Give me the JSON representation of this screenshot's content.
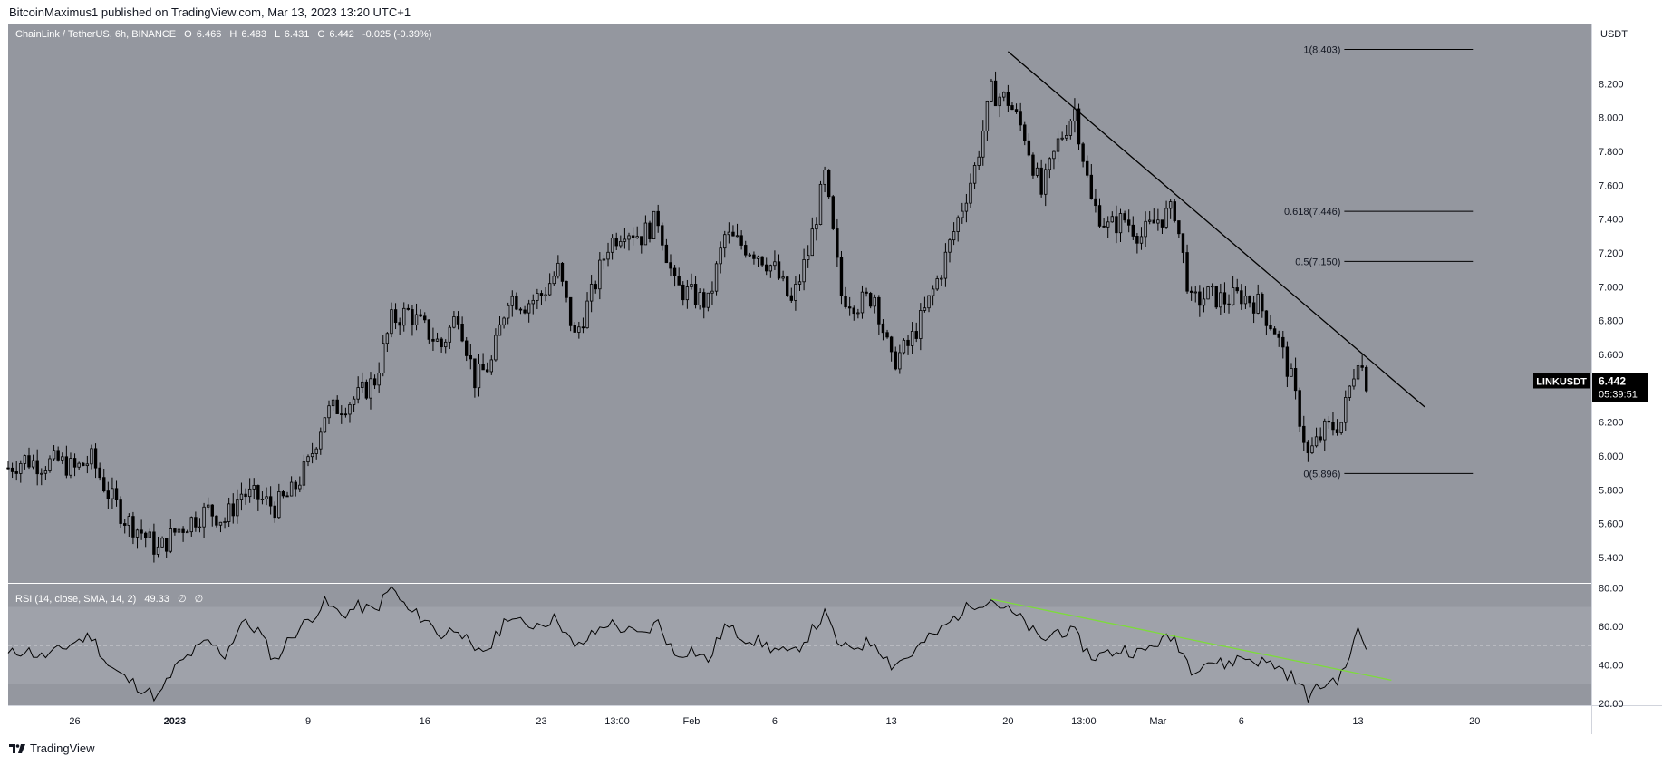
{
  "header": {
    "publish_line": "BitcoinMaximus1 published on TradingView.com, Mar 13, 2023 13:20 UTC+1"
  },
  "footer": {
    "brand": "TradingView"
  },
  "colors": {
    "main_bg": "#94979f",
    "rsi_bg": "#94979f",
    "rsi_band": "#9fa2aa",
    "candle": "#000000",
    "trendline": "#000000",
    "rsi_trendline": "#7ddc3a",
    "price_label_bg": "#000000"
  },
  "chart_data": [
    {
      "type": "candlestick",
      "title": "ChainLink / TetherUS, 6h, BINANCE",
      "ohlc": {
        "o_label": "O",
        "o": "6.466",
        "h_label": "H",
        "h": "6.483",
        "l_label": "L",
        "l": "6.431",
        "c_label": "C",
        "c": "6.442",
        "change": "-0.025 (-0.39%)"
      },
      "unit": "USDT",
      "symbol": "LINKUSDT",
      "last_price": "6.442",
      "countdown": "05:39:51",
      "ylim": [
        5.25,
        8.55
      ],
      "y_ticks": [
        "5.400",
        "5.600",
        "5.800",
        "6.000",
        "6.200",
        "6.400",
        "6.600",
        "6.800",
        "7.000",
        "7.200",
        "7.400",
        "7.600",
        "7.800",
        "8.000",
        "8.200"
      ],
      "x_ticks": [
        "26",
        "2023",
        "9",
        "16",
        "23",
        "13:00",
        "Feb",
        "6",
        "13",
        "20",
        "13:00",
        "Mar",
        "6",
        "13",
        "20"
      ],
      "x_tick_dates": [
        "2022-12-26",
        "2023-01-01",
        "2023-01-09",
        "2023-01-16",
        "2023-01-23",
        "2023-01-27T13:00",
        "2023-02-01",
        "2023-02-06",
        "2023-02-13",
        "2023-02-20",
        "2023-02-24T13:00",
        "2023-03-01",
        "2023-03-06",
        "2023-03-13",
        "2023-03-20"
      ],
      "x_range": [
        "2022-12-22T00:00",
        "2023-03-27T00:00"
      ],
      "close_path": [
        {
          "d": "2022-12-22",
          "v": 5.93
        },
        {
          "d": "2022-12-23",
          "v": 5.98
        },
        {
          "d": "2022-12-24",
          "v": 5.95
        },
        {
          "d": "2022-12-25",
          "v": 5.97
        },
        {
          "d": "2022-12-26",
          "v": 5.92
        },
        {
          "d": "2022-12-27",
          "v": 5.98
        },
        {
          "d": "2022-12-28",
          "v": 5.78
        },
        {
          "d": "2022-12-29",
          "v": 5.63
        },
        {
          "d": "2022-12-30",
          "v": 5.55
        },
        {
          "d": "2022-12-31",
          "v": 5.44
        },
        {
          "d": "2023-01-01",
          "v": 5.55
        },
        {
          "d": "2023-01-02",
          "v": 5.62
        },
        {
          "d": "2023-01-03",
          "v": 5.68
        },
        {
          "d": "2023-01-04",
          "v": 5.62
        },
        {
          "d": "2023-01-05",
          "v": 5.78
        },
        {
          "d": "2023-01-06",
          "v": 5.75
        },
        {
          "d": "2023-01-07",
          "v": 5.7
        },
        {
          "d": "2023-01-08",
          "v": 5.78
        },
        {
          "d": "2023-01-09",
          "v": 5.95
        },
        {
          "d": "2023-01-10",
          "v": 6.25
        },
        {
          "d": "2023-01-11",
          "v": 6.3
        },
        {
          "d": "2023-01-12",
          "v": 6.35
        },
        {
          "d": "2023-01-13",
          "v": 6.45
        },
        {
          "d": "2023-01-14",
          "v": 6.8
        },
        {
          "d": "2023-01-15",
          "v": 6.85
        },
        {
          "d": "2023-01-16",
          "v": 6.75
        },
        {
          "d": "2023-01-17",
          "v": 6.65
        },
        {
          "d": "2023-01-18",
          "v": 6.85
        },
        {
          "d": "2023-01-19",
          "v": 6.45
        },
        {
          "d": "2023-01-20",
          "v": 6.55
        },
        {
          "d": "2023-01-21",
          "v": 6.95
        },
        {
          "d": "2023-01-22",
          "v": 6.9
        },
        {
          "d": "2023-01-23",
          "v": 6.95
        },
        {
          "d": "2023-01-24",
          "v": 7.1
        },
        {
          "d": "2023-01-25",
          "v": 6.7
        },
        {
          "d": "2023-01-26",
          "v": 6.95
        },
        {
          "d": "2023-01-27",
          "v": 7.25
        },
        {
          "d": "2023-01-28",
          "v": 7.35
        },
        {
          "d": "2023-01-29",
          "v": 7.3
        },
        {
          "d": "2023-01-30",
          "v": 7.4
        },
        {
          "d": "2023-01-31",
          "v": 7.0
        },
        {
          "d": "2023-02-01",
          "v": 6.95
        },
        {
          "d": "2023-02-02",
          "v": 6.9
        },
        {
          "d": "2023-02-03",
          "v": 7.3
        },
        {
          "d": "2023-02-04",
          "v": 7.25
        },
        {
          "d": "2023-02-05",
          "v": 7.2
        },
        {
          "d": "2023-02-06",
          "v": 7.1
        },
        {
          "d": "2023-02-07",
          "v": 6.9
        },
        {
          "d": "2023-02-08",
          "v": 7.2
        },
        {
          "d": "2023-02-09",
          "v": 7.65
        },
        {
          "d": "2023-02-10",
          "v": 6.95
        },
        {
          "d": "2023-02-11",
          "v": 6.9
        },
        {
          "d": "2023-02-12",
          "v": 6.95
        },
        {
          "d": "2023-02-13",
          "v": 6.55
        },
        {
          "d": "2023-02-14",
          "v": 6.65
        },
        {
          "d": "2023-02-15",
          "v": 6.85
        },
        {
          "d": "2023-02-16",
          "v": 7.1
        },
        {
          "d": "2023-02-17",
          "v": 7.4
        },
        {
          "d": "2023-02-18",
          "v": 7.7
        },
        {
          "d": "2023-02-19",
          "v": 8.15
        },
        {
          "d": "2023-02-20",
          "v": 8.1
        },
        {
          "d": "2023-02-21",
          "v": 7.9
        },
        {
          "d": "2023-02-22",
          "v": 7.55
        },
        {
          "d": "2023-02-23",
          "v": 7.85
        },
        {
          "d": "2023-02-24",
          "v": 8.05
        },
        {
          "d": "2023-02-25",
          "v": 7.5
        },
        {
          "d": "2023-02-26",
          "v": 7.35
        },
        {
          "d": "2023-02-27",
          "v": 7.4
        },
        {
          "d": "2023-02-28",
          "v": 7.3
        },
        {
          "d": "2023-03-01",
          "v": 7.4
        },
        {
          "d": "2023-03-02",
          "v": 7.45
        },
        {
          "d": "2023-03-03",
          "v": 6.9
        },
        {
          "d": "2023-03-04",
          "v": 6.95
        },
        {
          "d": "2023-03-05",
          "v": 6.92
        },
        {
          "d": "2023-03-06",
          "v": 6.95
        },
        {
          "d": "2023-03-07",
          "v": 6.9
        },
        {
          "d": "2023-03-08",
          "v": 6.75
        },
        {
          "d": "2023-03-09",
          "v": 6.45
        },
        {
          "d": "2023-03-10",
          "v": 6.0
        },
        {
          "d": "2023-03-11",
          "v": 6.15
        },
        {
          "d": "2023-03-12",
          "v": 6.2
        },
        {
          "d": "2023-03-13",
          "v": 6.6
        },
        {
          "d": "2023-03-13T12:00",
          "v": 6.44
        }
      ],
      "trendline": {
        "from": {
          "d": "2023-02-20",
          "v": 8.39
        },
        "to": {
          "d": "2023-03-17",
          "v": 6.29
        }
      },
      "fib_levels": [
        {
          "label": "1(8.403)",
          "value": 8.403
        },
        {
          "label": "0.618(7.446)",
          "value": 7.446
        },
        {
          "label": "0.5(7.150)",
          "value": 7.15
        },
        {
          "label": "0(5.896)",
          "value": 5.896
        }
      ],
      "fib_start": "2023-03-10",
      "fib_end": "2023-03-20"
    },
    {
      "type": "line",
      "title": "RSI (14, close, SMA, 14, 2)",
      "value": "49.33",
      "extra_labels": [
        "∅",
        "∅"
      ],
      "ylim": [
        19,
        82
      ],
      "y_ticks": [
        "20.00",
        "40.00",
        "60.00",
        "80.00"
      ],
      "band": [
        30,
        70
      ],
      "midline": 50,
      "series": [
        {
          "d": "2022-12-22",
          "v": 45
        },
        {
          "d": "2022-12-23",
          "v": 48
        },
        {
          "d": "2022-12-24",
          "v": 44
        },
        {
          "d": "2022-12-25",
          "v": 47
        },
        {
          "d": "2022-12-26",
          "v": 52
        },
        {
          "d": "2022-12-27",
          "v": 55
        },
        {
          "d": "2022-12-28",
          "v": 40
        },
        {
          "d": "2022-12-29",
          "v": 33
        },
        {
          "d": "2022-12-30",
          "v": 28
        },
        {
          "d": "2022-12-31",
          "v": 23
        },
        {
          "d": "2023-01-01",
          "v": 38
        },
        {
          "d": "2023-01-02",
          "v": 46
        },
        {
          "d": "2023-01-03",
          "v": 52
        },
        {
          "d": "2023-01-04",
          "v": 45
        },
        {
          "d": "2023-01-05",
          "v": 62
        },
        {
          "d": "2023-01-06",
          "v": 58
        },
        {
          "d": "2023-01-07",
          "v": 42
        },
        {
          "d": "2023-01-08",
          "v": 55
        },
        {
          "d": "2023-01-09",
          "v": 63
        },
        {
          "d": "2023-01-10",
          "v": 72
        },
        {
          "d": "2023-01-11",
          "v": 66
        },
        {
          "d": "2023-01-12",
          "v": 70
        },
        {
          "d": "2023-01-13",
          "v": 68
        },
        {
          "d": "2023-01-14",
          "v": 80
        },
        {
          "d": "2023-01-15",
          "v": 68
        },
        {
          "d": "2023-01-16",
          "v": 64
        },
        {
          "d": "2023-01-17",
          "v": 55
        },
        {
          "d": "2023-01-18",
          "v": 60
        },
        {
          "d": "2023-01-19",
          "v": 45
        },
        {
          "d": "2023-01-20",
          "v": 50
        },
        {
          "d": "2023-01-21",
          "v": 66
        },
        {
          "d": "2023-01-22",
          "v": 60
        },
        {
          "d": "2023-01-23",
          "v": 62
        },
        {
          "d": "2023-01-24",
          "v": 64
        },
        {
          "d": "2023-01-25",
          "v": 48
        },
        {
          "d": "2023-01-26",
          "v": 55
        },
        {
          "d": "2023-01-27",
          "v": 62
        },
        {
          "d": "2023-01-28",
          "v": 58
        },
        {
          "d": "2023-01-29",
          "v": 55
        },
        {
          "d": "2023-01-30",
          "v": 62
        },
        {
          "d": "2023-01-31",
          "v": 45
        },
        {
          "d": "2023-02-01",
          "v": 48
        },
        {
          "d": "2023-02-02",
          "v": 42
        },
        {
          "d": "2023-02-03",
          "v": 60
        },
        {
          "d": "2023-02-04",
          "v": 55
        },
        {
          "d": "2023-02-05",
          "v": 52
        },
        {
          "d": "2023-02-06",
          "v": 48
        },
        {
          "d": "2023-02-07",
          "v": 45
        },
        {
          "d": "2023-02-08",
          "v": 55
        },
        {
          "d": "2023-02-09",
          "v": 66
        },
        {
          "d": "2023-02-10",
          "v": 48
        },
        {
          "d": "2023-02-11",
          "v": 50
        },
        {
          "d": "2023-02-12",
          "v": 52
        },
        {
          "d": "2023-02-13",
          "v": 40
        },
        {
          "d": "2023-02-14",
          "v": 44
        },
        {
          "d": "2023-02-15",
          "v": 52
        },
        {
          "d": "2023-02-16",
          "v": 58
        },
        {
          "d": "2023-02-17",
          "v": 66
        },
        {
          "d": "2023-02-18",
          "v": 72
        },
        {
          "d": "2023-02-19",
          "v": 74
        },
        {
          "d": "2023-02-20",
          "v": 68
        },
        {
          "d": "2023-02-21",
          "v": 62
        },
        {
          "d": "2023-02-22",
          "v": 52
        },
        {
          "d": "2023-02-23",
          "v": 58
        },
        {
          "d": "2023-02-24",
          "v": 56
        },
        {
          "d": "2023-02-25",
          "v": 44
        },
        {
          "d": "2023-02-26",
          "v": 46
        },
        {
          "d": "2023-02-27",
          "v": 48
        },
        {
          "d": "2023-02-28",
          "v": 46
        },
        {
          "d": "2023-03-01",
          "v": 52
        },
        {
          "d": "2023-03-02",
          "v": 54
        },
        {
          "d": "2023-03-03",
          "v": 38
        },
        {
          "d": "2023-03-04",
          "v": 42
        },
        {
          "d": "2023-03-05",
          "v": 40
        },
        {
          "d": "2023-03-06",
          "v": 44
        },
        {
          "d": "2023-03-07",
          "v": 42
        },
        {
          "d": "2023-03-08",
          "v": 40
        },
        {
          "d": "2023-03-09",
          "v": 34
        },
        {
          "d": "2023-03-10",
          "v": 24
        },
        {
          "d": "2023-03-11",
          "v": 30
        },
        {
          "d": "2023-03-12",
          "v": 34
        },
        {
          "d": "2023-03-13",
          "v": 57
        },
        {
          "d": "2023-03-13T12:00",
          "v": 49.33
        }
      ],
      "trendline": {
        "from": {
          "d": "2023-02-19",
          "v": 74
        },
        "to": {
          "d": "2023-03-15",
          "v": 32
        }
      }
    }
  ]
}
